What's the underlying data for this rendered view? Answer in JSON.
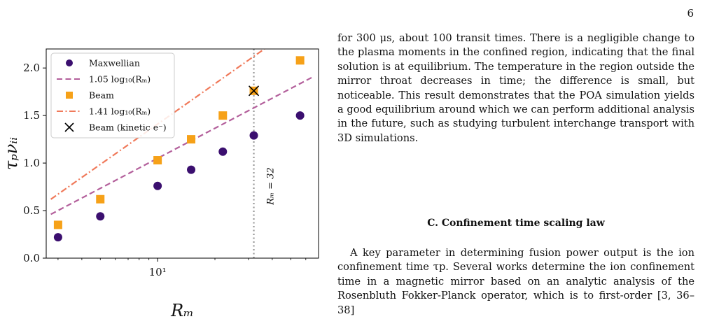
{
  "page": {
    "number": "6"
  },
  "figure": {
    "chart_data": {
      "type": "scatter",
      "xscale": "log",
      "xlim": [
        2.6,
        70
      ],
      "ylim": [
        0.0,
        2.2
      ],
      "xlabel": "R_m",
      "ylabel": "τ_p ν_ii",
      "x_ticks": [
        {
          "value": 10,
          "label": "10¹"
        }
      ],
      "y_ticks": [
        {
          "value": 0.0,
          "label": "0.0"
        },
        {
          "value": 0.5,
          "label": "0.5"
        },
        {
          "value": 1.0,
          "label": "1.0"
        },
        {
          "value": 1.5,
          "label": "1.5"
        },
        {
          "value": 2.0,
          "label": "2.0"
        }
      ],
      "legend_position": "upper-left",
      "series": [
        {
          "name": "Maxwellian",
          "kind": "points",
          "marker": "circle",
          "color": "#3b0f6f",
          "x": [
            3,
            5,
            10,
            15,
            22,
            32,
            56
          ],
          "y": [
            0.22,
            0.44,
            0.76,
            0.93,
            1.12,
            1.29,
            1.5
          ]
        },
        {
          "name": "1.05 log₁₀(R_m)",
          "kind": "line",
          "style": "dashed",
          "color": "#b35f9b",
          "coef": 1.05,
          "x_range": [
            2.75,
            66
          ]
        },
        {
          "name": "Beam",
          "kind": "points",
          "marker": "square",
          "color": "#f6a118",
          "x": [
            3,
            5,
            10,
            15,
            22,
            32,
            56
          ],
          "y": [
            0.35,
            0.62,
            1.03,
            1.25,
            1.5,
            1.76,
            2.08
          ]
        },
        {
          "name": "1.41 log₁₀(R_m)",
          "kind": "line",
          "style": "dashdot",
          "color": "#f07a5b",
          "coef": 1.41,
          "x_range": [
            2.75,
            66
          ]
        },
        {
          "name": "Beam (kinetic e⁻)",
          "kind": "points",
          "marker": "x",
          "color": "#000000",
          "x": [
            32
          ],
          "y": [
            1.76
          ]
        }
      ],
      "vline": {
        "x": 32,
        "label": "R_m = 32",
        "style": "dotted",
        "color": "#999999"
      }
    }
  },
  "text": {
    "para1": "for 300 μs, about 100 transit times. There is a negligible change to the plasma moments in the confined region, indicating that the final solution is at equilibrium. The temperature in the region outside the mirror throat decreases in time; the difference is small, but noticeable. This result demonstrates that the POA simulation yields a good equilibrium around which we can perform additional analysis in the future, such as studying turbulent interchange transport with 3D simulations.",
    "section_heading": "C.    Confinement time scaling law",
    "para2": "A key parameter in determining fusion power output is the ion confinement time τp. Several works determine the ion confinement time in a magnetic mirror based on an analytic analysis of the Rosenbluth Fokker-Planck operator, which is to first-order [3, 36–38]"
  }
}
